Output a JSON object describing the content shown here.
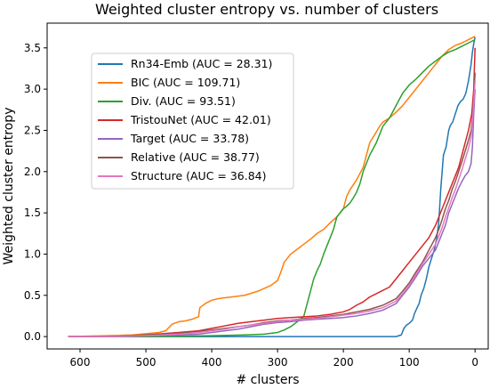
{
  "chart_data": {
    "type": "line",
    "title": "Weighted cluster entropy vs. number of clusters",
    "xlabel": "# clusters",
    "ylabel": "Weighted cluster entropy",
    "xlim": [
      650,
      -20
    ],
    "ylim": [
      -0.15,
      3.8
    ],
    "x_inverted": true,
    "xticks": [
      600,
      500,
      400,
      300,
      200,
      100,
      0
    ],
    "yticks": [
      0.0,
      0.5,
      1.0,
      1.5,
      2.0,
      2.5,
      3.0,
      3.5
    ],
    "ytick_labels": [
      "0.0",
      "0.5",
      "1.0",
      "1.5",
      "2.0",
      "2.5",
      "3.0",
      "3.5"
    ],
    "grid": false,
    "legend_position": "upper-left",
    "series": [
      {
        "name": "Rn34-Emb (AUC = 28.31)",
        "color": "#1f77b4",
        "points": [
          [
            618,
            0
          ],
          [
            500,
            0
          ],
          [
            400,
            0
          ],
          [
            300,
            0
          ],
          [
            200,
            0
          ],
          [
            120,
            0
          ],
          [
            112,
            0.02
          ],
          [
            108,
            0.1
          ],
          [
            104,
            0.14
          ],
          [
            100,
            0.16
          ],
          [
            95,
            0.2
          ],
          [
            92,
            0.28
          ],
          [
            88,
            0.35
          ],
          [
            85,
            0.4
          ],
          [
            82,
            0.5
          ],
          [
            78,
            0.58
          ],
          [
            74,
            0.7
          ],
          [
            70,
            0.85
          ],
          [
            66,
            0.95
          ],
          [
            62,
            1.05
          ],
          [
            58,
            1.2
          ],
          [
            55,
            1.4
          ],
          [
            52,
            1.8
          ],
          [
            50,
            2.0
          ],
          [
            48,
            2.2
          ],
          [
            46,
            2.25
          ],
          [
            44,
            2.3
          ],
          [
            42,
            2.4
          ],
          [
            40,
            2.5
          ],
          [
            38,
            2.55
          ],
          [
            36,
            2.58
          ],
          [
            34,
            2.6
          ],
          [
            30,
            2.7
          ],
          [
            26,
            2.8
          ],
          [
            22,
            2.85
          ],
          [
            18,
            2.88
          ],
          [
            14,
            2.95
          ],
          [
            10,
            3.1
          ],
          [
            8,
            3.2
          ],
          [
            6,
            3.3
          ],
          [
            4,
            3.45
          ],
          [
            2,
            3.55
          ],
          [
            0,
            3.63
          ]
        ]
      },
      {
        "name": "BIC (AUC = 109.71)",
        "color": "#ff7f0e",
        "points": [
          [
            618,
            0
          ],
          [
            560,
            0.01
          ],
          [
            520,
            0.02
          ],
          [
            480,
            0.05
          ],
          [
            470,
            0.07
          ],
          [
            460,
            0.15
          ],
          [
            450,
            0.18
          ],
          [
            440,
            0.19
          ],
          [
            430,
            0.21
          ],
          [
            420,
            0.24
          ],
          [
            418,
            0.35
          ],
          [
            410,
            0.4
          ],
          [
            400,
            0.44
          ],
          [
            390,
            0.46
          ],
          [
            370,
            0.48
          ],
          [
            350,
            0.5
          ],
          [
            330,
            0.55
          ],
          [
            310,
            0.62
          ],
          [
            300,
            0.68
          ],
          [
            295,
            0.78
          ],
          [
            290,
            0.9
          ],
          [
            280,
            1.0
          ],
          [
            270,
            1.06
          ],
          [
            260,
            1.12
          ],
          [
            250,
            1.18
          ],
          [
            240,
            1.25
          ],
          [
            230,
            1.3
          ],
          [
            220,
            1.38
          ],
          [
            210,
            1.45
          ],
          [
            200,
            1.55
          ],
          [
            195,
            1.7
          ],
          [
            190,
            1.78
          ],
          [
            180,
            1.9
          ],
          [
            170,
            2.05
          ],
          [
            165,
            2.2
          ],
          [
            160,
            2.35
          ],
          [
            150,
            2.48
          ],
          [
            145,
            2.55
          ],
          [
            140,
            2.6
          ],
          [
            130,
            2.65
          ],
          [
            120,
            2.72
          ],
          [
            110,
            2.8
          ],
          [
            100,
            2.9
          ],
          [
            90,
            3.0
          ],
          [
            80,
            3.1
          ],
          [
            70,
            3.2
          ],
          [
            60,
            3.3
          ],
          [
            50,
            3.4
          ],
          [
            40,
            3.48
          ],
          [
            30,
            3.53
          ],
          [
            20,
            3.56
          ],
          [
            10,
            3.6
          ],
          [
            0,
            3.64
          ]
        ]
      },
      {
        "name": "Div. (AUC = 93.51)",
        "color": "#2ca02c",
        "points": [
          [
            618,
            0
          ],
          [
            500,
            0
          ],
          [
            400,
            0.01
          ],
          [
            350,
            0.02
          ],
          [
            320,
            0.03
          ],
          [
            300,
            0.05
          ],
          [
            290,
            0.08
          ],
          [
            280,
            0.12
          ],
          [
            270,
            0.18
          ],
          [
            260,
            0.25
          ],
          [
            255,
            0.4
          ],
          [
            250,
            0.55
          ],
          [
            245,
            0.7
          ],
          [
            240,
            0.8
          ],
          [
            235,
            0.88
          ],
          [
            230,
            1.0
          ],
          [
            225,
            1.1
          ],
          [
            220,
            1.2
          ],
          [
            215,
            1.3
          ],
          [
            210,
            1.45
          ],
          [
            205,
            1.5
          ],
          [
            200,
            1.55
          ],
          [
            195,
            1.58
          ],
          [
            190,
            1.62
          ],
          [
            185,
            1.68
          ],
          [
            180,
            1.75
          ],
          [
            175,
            1.85
          ],
          [
            170,
            2.0
          ],
          [
            165,
            2.1
          ],
          [
            160,
            2.2
          ],
          [
            150,
            2.35
          ],
          [
            140,
            2.55
          ],
          [
            130,
            2.65
          ],
          [
            120,
            2.8
          ],
          [
            110,
            2.95
          ],
          [
            100,
            3.05
          ],
          [
            90,
            3.12
          ],
          [
            80,
            3.2
          ],
          [
            70,
            3.28
          ],
          [
            60,
            3.34
          ],
          [
            50,
            3.4
          ],
          [
            40,
            3.45
          ],
          [
            30,
            3.48
          ],
          [
            20,
            3.52
          ],
          [
            10,
            3.56
          ],
          [
            0,
            3.6
          ]
        ]
      },
      {
        "name": "TristouNet (AUC = 42.01)",
        "color": "#d62728",
        "points": [
          [
            618,
            0
          ],
          [
            550,
            0
          ],
          [
            500,
            0.02
          ],
          [
            450,
            0.05
          ],
          [
            420,
            0.07
          ],
          [
            400,
            0.1
          ],
          [
            380,
            0.13
          ],
          [
            360,
            0.16
          ],
          [
            340,
            0.18
          ],
          [
            320,
            0.2
          ],
          [
            300,
            0.22
          ],
          [
            280,
            0.23
          ],
          [
            260,
            0.24
          ],
          [
            240,
            0.25
          ],
          [
            220,
            0.27
          ],
          [
            200,
            0.3
          ],
          [
            190,
            0.33
          ],
          [
            180,
            0.38
          ],
          [
            170,
            0.42
          ],
          [
            160,
            0.48
          ],
          [
            150,
            0.52
          ],
          [
            140,
            0.56
          ],
          [
            130,
            0.6
          ],
          [
            120,
            0.7
          ],
          [
            110,
            0.8
          ],
          [
            100,
            0.9
          ],
          [
            90,
            1.0
          ],
          [
            80,
            1.1
          ],
          [
            70,
            1.2
          ],
          [
            60,
            1.35
          ],
          [
            55,
            1.45
          ],
          [
            50,
            1.55
          ],
          [
            45,
            1.65
          ],
          [
            40,
            1.75
          ],
          [
            35,
            1.85
          ],
          [
            30,
            1.95
          ],
          [
            25,
            2.05
          ],
          [
            20,
            2.2
          ],
          [
            15,
            2.35
          ],
          [
            10,
            2.5
          ],
          [
            5,
            2.7
          ],
          [
            2,
            3.0
          ],
          [
            0,
            3.5
          ]
        ]
      },
      {
        "name": "Target (AUC = 33.78)",
        "color": "#9467bd",
        "points": [
          [
            618,
            0
          ],
          [
            550,
            0
          ],
          [
            500,
            0.01
          ],
          [
            450,
            0.02
          ],
          [
            420,
            0.03
          ],
          [
            400,
            0.05
          ],
          [
            380,
            0.07
          ],
          [
            360,
            0.09
          ],
          [
            340,
            0.12
          ],
          [
            320,
            0.15
          ],
          [
            300,
            0.17
          ],
          [
            280,
            0.18
          ],
          [
            260,
            0.2
          ],
          [
            240,
            0.21
          ],
          [
            220,
            0.22
          ],
          [
            200,
            0.23
          ],
          [
            180,
            0.25
          ],
          [
            160,
            0.28
          ],
          [
            140,
            0.32
          ],
          [
            130,
            0.36
          ],
          [
            120,
            0.4
          ],
          [
            110,
            0.5
          ],
          [
            100,
            0.6
          ],
          [
            90,
            0.72
          ],
          [
            80,
            0.85
          ],
          [
            70,
            0.95
          ],
          [
            60,
            1.05
          ],
          [
            55,
            1.15
          ],
          [
            50,
            1.25
          ],
          [
            45,
            1.35
          ],
          [
            40,
            1.5
          ],
          [
            35,
            1.6
          ],
          [
            30,
            1.7
          ],
          [
            25,
            1.8
          ],
          [
            20,
            1.88
          ],
          [
            15,
            1.95
          ],
          [
            10,
            2.0
          ],
          [
            6,
            2.1
          ],
          [
            4,
            2.3
          ],
          [
            2,
            2.7
          ],
          [
            0,
            3.0
          ]
        ]
      },
      {
        "name": "Relative (AUC = 38.77)",
        "color": "#8c564b",
        "points": [
          [
            618,
            0
          ],
          [
            550,
            0
          ],
          [
            500,
            0.02
          ],
          [
            450,
            0.04
          ],
          [
            420,
            0.06
          ],
          [
            400,
            0.08
          ],
          [
            380,
            0.1
          ],
          [
            360,
            0.12
          ],
          [
            340,
            0.14
          ],
          [
            320,
            0.17
          ],
          [
            300,
            0.19
          ],
          [
            280,
            0.2
          ],
          [
            260,
            0.22
          ],
          [
            240,
            0.23
          ],
          [
            220,
            0.25
          ],
          [
            200,
            0.27
          ],
          [
            180,
            0.3
          ],
          [
            160,
            0.33
          ],
          [
            140,
            0.38
          ],
          [
            130,
            0.42
          ],
          [
            120,
            0.46
          ],
          [
            110,
            0.55
          ],
          [
            100,
            0.65
          ],
          [
            90,
            0.78
          ],
          [
            80,
            0.9
          ],
          [
            70,
            1.05
          ],
          [
            60,
            1.2
          ],
          [
            55,
            1.3
          ],
          [
            50,
            1.42
          ],
          [
            45,
            1.55
          ],
          [
            40,
            1.65
          ],
          [
            35,
            1.78
          ],
          [
            30,
            1.88
          ],
          [
            25,
            2.0
          ],
          [
            20,
            2.12
          ],
          [
            15,
            2.25
          ],
          [
            10,
            2.38
          ],
          [
            6,
            2.5
          ],
          [
            4,
            2.65
          ],
          [
            2,
            2.9
          ],
          [
            0,
            3.2
          ]
        ]
      },
      {
        "name": "Structure (AUC = 36.84)",
        "color": "#e377c2",
        "points": [
          [
            618,
            0
          ],
          [
            550,
            0
          ],
          [
            500,
            0.01
          ],
          [
            450,
            0.03
          ],
          [
            420,
            0.05
          ],
          [
            400,
            0.07
          ],
          [
            380,
            0.09
          ],
          [
            360,
            0.12
          ],
          [
            340,
            0.14
          ],
          [
            320,
            0.16
          ],
          [
            300,
            0.18
          ],
          [
            280,
            0.2
          ],
          [
            260,
            0.21
          ],
          [
            240,
            0.22
          ],
          [
            220,
            0.24
          ],
          [
            200,
            0.26
          ],
          [
            180,
            0.28
          ],
          [
            160,
            0.31
          ],
          [
            140,
            0.35
          ],
          [
            130,
            0.39
          ],
          [
            120,
            0.43
          ],
          [
            110,
            0.52
          ],
          [
            100,
            0.62
          ],
          [
            90,
            0.75
          ],
          [
            80,
            0.88
          ],
          [
            70,
            1.0
          ],
          [
            60,
            1.12
          ],
          [
            55,
            1.22
          ],
          [
            50,
            1.32
          ],
          [
            45,
            1.45
          ],
          [
            40,
            1.56
          ],
          [
            35,
            1.68
          ],
          [
            30,
            1.78
          ],
          [
            25,
            1.9
          ],
          [
            20,
            2.02
          ],
          [
            15,
            2.15
          ],
          [
            10,
            2.28
          ],
          [
            6,
            2.42
          ],
          [
            4,
            2.6
          ],
          [
            2,
            2.85
          ],
          [
            0,
            3.1
          ]
        ]
      }
    ]
  }
}
